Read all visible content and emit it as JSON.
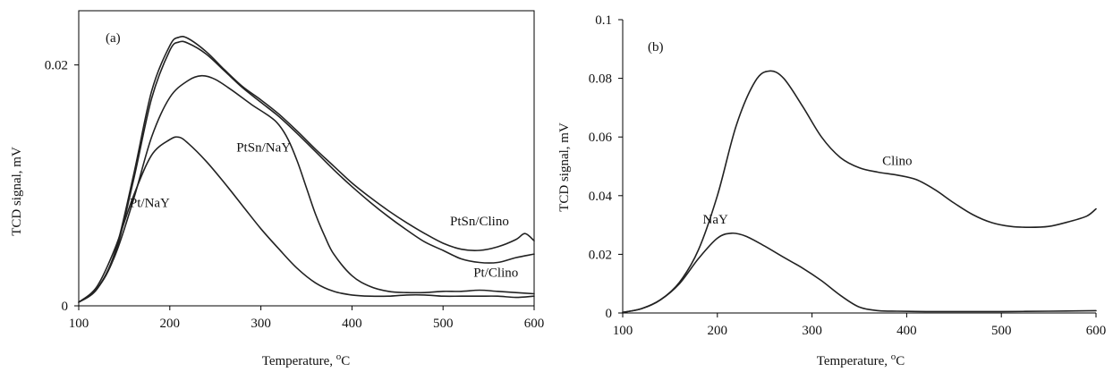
{
  "chart_data": [
    {
      "id": "a",
      "type": "line",
      "panel_label": "(a)",
      "xlabel": "Temperature, ",
      "xlabel_unit_sup": "o",
      "xlabel_unit": "C",
      "ylabel": "TCD signal, mV",
      "xlim": [
        100,
        600
      ],
      "ylim": [
        0,
        0.0245
      ],
      "xticks": [
        100,
        200,
        300,
        400,
        500,
        600
      ],
      "xtick_labels": [
        "100",
        "200",
        "300",
        "400",
        "500",
        "600"
      ],
      "yticks": [
        0,
        0.02
      ],
      "ytick_labels": [
        "0",
        "0.02"
      ],
      "frame": "box",
      "grid": false,
      "series_color": "#222222",
      "series": [
        {
          "name": "PtSn/Clino",
          "x": [
            100,
            120,
            140,
            160,
            180,
            200,
            210,
            220,
            240,
            260,
            280,
            300,
            320,
            340,
            360,
            380,
            400,
            420,
            440,
            460,
            480,
            500,
            520,
            540,
            560,
            580,
            590,
            600
          ],
          "y": [
            0.0003,
            0.0014,
            0.0045,
            0.0108,
            0.0178,
            0.0216,
            0.0223,
            0.0222,
            0.0211,
            0.0196,
            0.0182,
            0.0171,
            0.0159,
            0.0145,
            0.013,
            0.0116,
            0.0102,
            0.009,
            0.0079,
            0.0069,
            0.006,
            0.0052,
            0.0047,
            0.0046,
            0.0049,
            0.0055,
            0.006,
            0.0054
          ]
        },
        {
          "name": "Pt/Clino",
          "x": [
            100,
            120,
            140,
            160,
            180,
            200,
            210,
            220,
            240,
            260,
            280,
            300,
            320,
            340,
            360,
            380,
            400,
            420,
            440,
            460,
            480,
            500,
            520,
            540,
            560,
            580,
            600
          ],
          "y": [
            0.0003,
            0.0014,
            0.0043,
            0.0104,
            0.0172,
            0.0212,
            0.0219,
            0.0218,
            0.0209,
            0.0195,
            0.0181,
            0.0169,
            0.0157,
            0.0143,
            0.0128,
            0.0113,
            0.0099,
            0.0086,
            0.0074,
            0.0063,
            0.0053,
            0.0046,
            0.0039,
            0.0036,
            0.0036,
            0.004,
            0.0043
          ]
        },
        {
          "name": "PtSn/NaY",
          "x": [
            100,
            120,
            140,
            160,
            180,
            200,
            220,
            235,
            250,
            270,
            290,
            310,
            320,
            330,
            340,
            350,
            360,
            370,
            380,
            400,
            420,
            440,
            460,
            480,
            500,
            520,
            540,
            560,
            580,
            600
          ],
          "y": [
            0.0003,
            0.0014,
            0.0042,
            0.0088,
            0.014,
            0.0173,
            0.0187,
            0.0191,
            0.0188,
            0.0178,
            0.0167,
            0.0157,
            0.015,
            0.0138,
            0.012,
            0.0098,
            0.0076,
            0.0058,
            0.0043,
            0.0025,
            0.0016,
            0.0012,
            0.0011,
            0.0011,
            0.0012,
            0.0012,
            0.0013,
            0.0012,
            0.0011,
            0.001
          ]
        },
        {
          "name": "Pt/NaY",
          "x": [
            100,
            120,
            140,
            160,
            180,
            200,
            210,
            220,
            240,
            260,
            280,
            300,
            320,
            340,
            360,
            380,
            400,
            420,
            440,
            460,
            480,
            500,
            520,
            540,
            560,
            580,
            600
          ],
          "y": [
            0.0003,
            0.0016,
            0.0048,
            0.0091,
            0.0125,
            0.0138,
            0.014,
            0.0135,
            0.012,
            0.0102,
            0.0083,
            0.0064,
            0.0047,
            0.0031,
            0.0019,
            0.0012,
            0.0009,
            0.0008,
            0.0008,
            0.0009,
            0.0009,
            0.0008,
            0.0008,
            0.0008,
            0.0008,
            0.0007,
            0.0008
          ]
        }
      ],
      "annotations": [
        {
          "text": "PtSn/Clino",
          "x": 540,
          "y": 0.0067
        },
        {
          "text": "Pt/Clino",
          "x": 558,
          "y": 0.0024
        },
        {
          "text": "PtSn/NaY",
          "x": 303,
          "y": 0.0128
        },
        {
          "text": "Pt/NaY",
          "x": 178,
          "y": 0.0082
        }
      ]
    },
    {
      "id": "b",
      "type": "line",
      "panel_label": "(b)",
      "xlabel": "Temperature, ",
      "xlabel_unit_sup": "o",
      "xlabel_unit": "C",
      "ylabel": "TCD signal, mV",
      "xlim": [
        100,
        600
      ],
      "ylim": [
        0,
        0.1
      ],
      "xticks": [
        100,
        200,
        300,
        400,
        500,
        600
      ],
      "xtick_labels": [
        "100",
        "200",
        "300",
        "400",
        "500",
        "600"
      ],
      "yticks": [
        0,
        0.02,
        0.04,
        0.06,
        0.08,
        0.1
      ],
      "ytick_labels": [
        "0",
        "0.02",
        "0.04",
        "0.06",
        "0.08",
        "0.1"
      ],
      "frame": "axes-only",
      "grid": false,
      "series_color": "#222222",
      "series": [
        {
          "name": "Clino",
          "x": [
            100,
            120,
            140,
            160,
            180,
            200,
            220,
            240,
            255,
            270,
            290,
            310,
            330,
            350,
            370,
            390,
            410,
            430,
            450,
            470,
            490,
            510,
            530,
            550,
            570,
            590,
            600
          ],
          "y": [
            0.0002,
            0.0015,
            0.0045,
            0.0105,
            0.0215,
            0.04,
            0.064,
            0.079,
            0.0825,
            0.08,
            0.0705,
            0.06,
            0.053,
            0.0495,
            0.048,
            0.047,
            0.0455,
            0.042,
            0.0375,
            0.0335,
            0.0308,
            0.0295,
            0.0292,
            0.0295,
            0.031,
            0.033,
            0.0355
          ]
        },
        {
          "name": "NaY",
          "x": [
            100,
            120,
            140,
            160,
            180,
            200,
            215,
            230,
            250,
            270,
            290,
            310,
            330,
            350,
            370,
            390,
            420,
            450,
            500,
            550,
            600
          ],
          "y": [
            0.0002,
            0.0015,
            0.0045,
            0.01,
            0.0185,
            0.0255,
            0.0272,
            0.0262,
            0.0228,
            0.019,
            0.0153,
            0.011,
            0.006,
            0.002,
            0.0008,
            0.0006,
            0.0005,
            0.0005,
            0.0005,
            0.0006,
            0.0008
          ]
        }
      ],
      "annotations": [
        {
          "text": "Clino",
          "x": 390,
          "y": 0.0505
        },
        {
          "text": "NaY",
          "x": 198,
          "y": 0.0305
        }
      ]
    }
  ]
}
